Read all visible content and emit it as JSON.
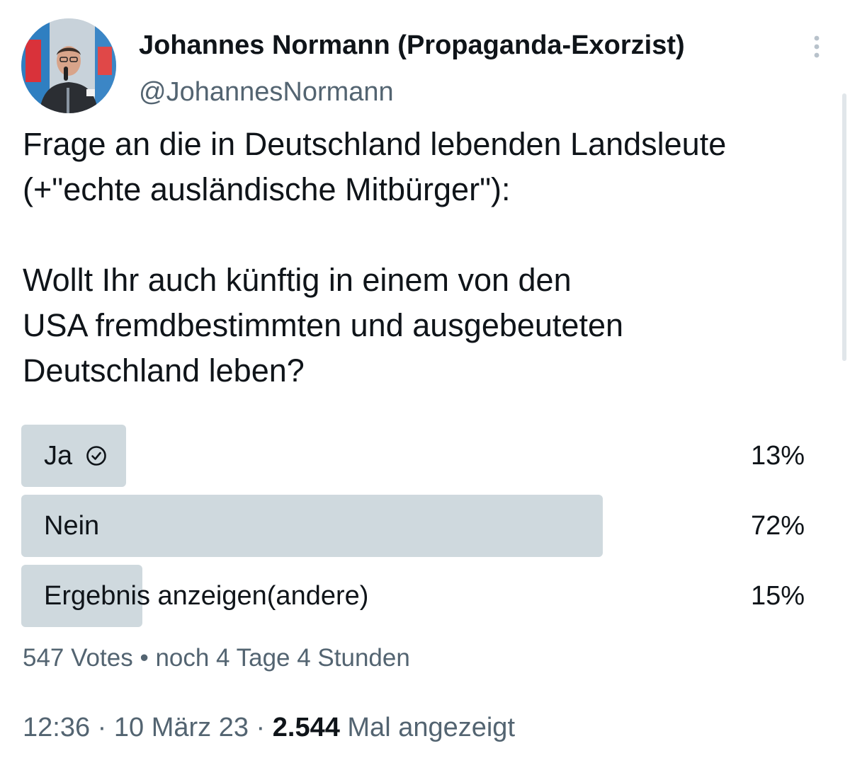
{
  "tweet": {
    "author": {
      "display_name": "Johannes Normann (Propaganda-Exorzist)",
      "handle": "@JohannesNormann"
    },
    "text_lines": [
      "Frage an die in Deutschland lebenden Landsleute",
      "(+\"echte ausländische Mitbürger\"):",
      "Wollt Ihr auch künftig in einem von den",
      "USA fremdbestimmten und ausgebeuteten",
      "Deutschland leben?"
    ]
  },
  "poll": {
    "options": [
      {
        "label": "Ja",
        "percent_text": "13%",
        "percent": 13,
        "voted": true
      },
      {
        "label": "Nein",
        "percent_text": "72%",
        "percent": 72,
        "voted": false
      },
      {
        "label": "Ergebnis anzeigen(andere)",
        "percent_text": "15%",
        "percent": 15,
        "voted": false
      }
    ],
    "votes": "547 Votes",
    "separator": "•",
    "time_left": "noch 4 Tage 4 Stunden"
  },
  "meta": {
    "time": "12:36",
    "dot": "·",
    "date": "10 März 23",
    "views_count": "2.544",
    "views_label": "Mal angezeigt"
  },
  "icons": {
    "more": "more-vertical-icon",
    "voted_check": "check-circle-icon"
  },
  "colors": {
    "poll_fill": "#cfd9de",
    "text_secondary": "#536471",
    "text_primary": "#0f1419"
  }
}
